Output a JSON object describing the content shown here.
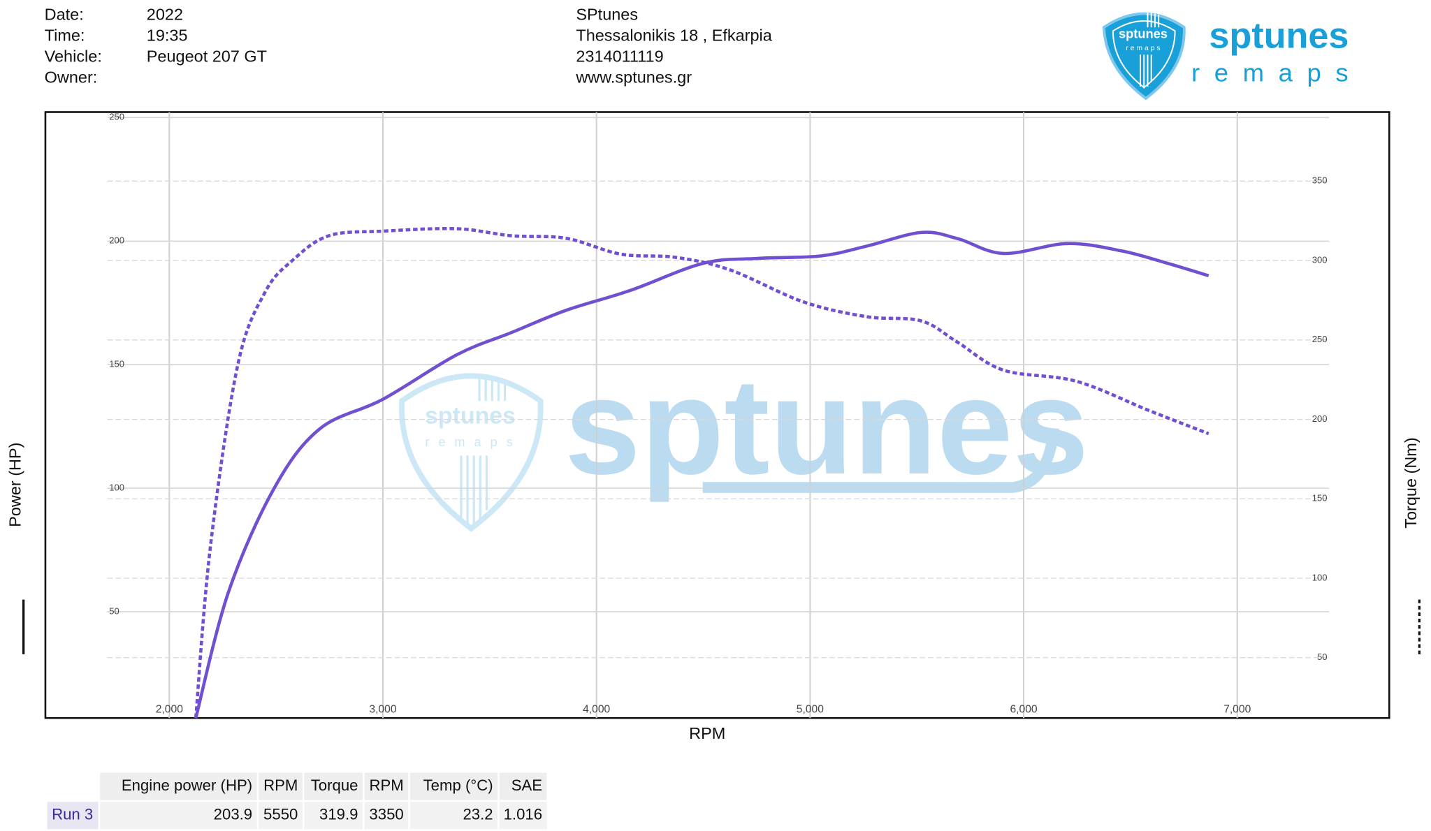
{
  "info": {
    "rows": [
      [
        "Date:",
        "2022"
      ],
      [
        "Time:",
        "19:35"
      ],
      [
        "Vehicle:",
        "Peugeot 207 GT"
      ],
      [
        "Owner:"
      ]
    ]
  },
  "company": [
    "SPtunes",
    "Thessalonikis 18 , Efkarpia",
    "2314011119",
    "www.sptunes.gr"
  ],
  "logo": {
    "name": "sptunes",
    "tagline": "r e m a p s"
  },
  "chart_data": {
    "type": "line",
    "xlabel": "RPM",
    "ylabel": "Power (HP)",
    "y2label": "Torque (Nm)",
    "xlim": [
      1710,
      7430
    ],
    "xticks": [
      {
        "value": 2000,
        "label": "2,000"
      },
      {
        "value": 3000,
        "label": "3,000"
      },
      {
        "value": 4000,
        "label": "4,000"
      },
      {
        "value": 5000,
        "label": "5,000"
      },
      {
        "value": 6000,
        "label": "6,000"
      },
      {
        "value": 7000,
        "label": "7,000"
      }
    ],
    "ylim": [
      7,
      250
    ],
    "yticks": [
      50,
      100,
      150,
      200,
      250
    ],
    "y2lim": [
      12,
      390
    ],
    "y2ticks": [
      50,
      100,
      150,
      200,
      250,
      300,
      350
    ],
    "grid": true,
    "series": [
      {
        "color": "#7050d0",
        "style": "solid",
        "x": [
          2124,
          2277,
          2491,
          2704,
          3000,
          3346,
          3602,
          3858,
          4157,
          4499,
          4755,
          5051,
          5267,
          5520,
          5691,
          5905,
          6204,
          6460,
          6674,
          6866
        ],
        "values": [
          7,
          58,
          100,
          124,
          136,
          154,
          163,
          172,
          180,
          191,
          193,
          194,
          198,
          203.5,
          201,
          195,
          199,
          196,
          191,
          186
        ]
      },
      {
        "color": "#7050d0",
        "style": "dashed",
        "axis": "y2",
        "x": [
          2124,
          2192,
          2320,
          2448,
          2576,
          2747,
          3003,
          3346,
          3602,
          3858,
          4114,
          4370,
          4627,
          4968,
          5267,
          5520,
          5691,
          5905,
          6246,
          6588,
          6866
        ],
        "values": [
          12,
          119.5,
          234,
          280,
          300,
          315.6,
          318.5,
          320,
          315.6,
          314,
          304,
          302,
          294,
          274,
          264.6,
          262,
          248.5,
          231,
          224,
          205.5,
          191
        ]
      }
    ]
  },
  "table": {
    "columns": [
      "Engine power (HP)",
      "RPM",
      "Torque",
      "RPM",
      "Temp (°C)",
      "SAE"
    ],
    "rows": [
      [
        "Run 3",
        203.9,
        5550,
        319.9,
        3350,
        23.2,
        1.016
      ]
    ]
  }
}
